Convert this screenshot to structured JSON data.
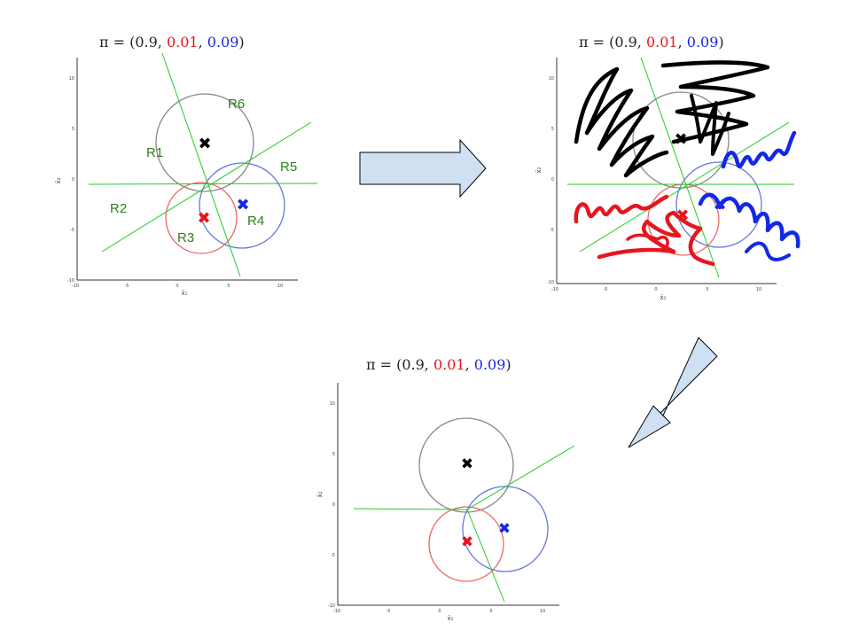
{
  "colors": {
    "green": "#22cc22",
    "black_class": "#000000",
    "red_class": "#e8141e",
    "blue_class": "#1428e6",
    "circle_black": "#888888",
    "circle_red": "#ee6666",
    "circle_blue": "#6677dd",
    "region_label": "#2e7d1e",
    "arrow_fill": "#cfe0f3",
    "arrow_stroke": "#000000",
    "title_text": "#222222"
  },
  "title": {
    "prefix": "π = (",
    "p1": "0.9",
    "sep1": ", ",
    "p2": "0.01",
    "sep2": ", ",
    "p3": "0.09",
    "suffix": ")"
  },
  "axes": {
    "xlabel": "x̄₁",
    "ylabel": "x̄₂",
    "xticks": [
      "-10",
      "-5",
      "0",
      "5",
      "10"
    ],
    "yticks": [
      "-10",
      "-5",
      "0",
      "5",
      "10"
    ]
  },
  "regions": [
    "R1",
    "R2",
    "R3",
    "R4",
    "R5",
    "R6"
  ],
  "arrows": [
    "right-arrow",
    "down-left-arrow"
  ]
}
